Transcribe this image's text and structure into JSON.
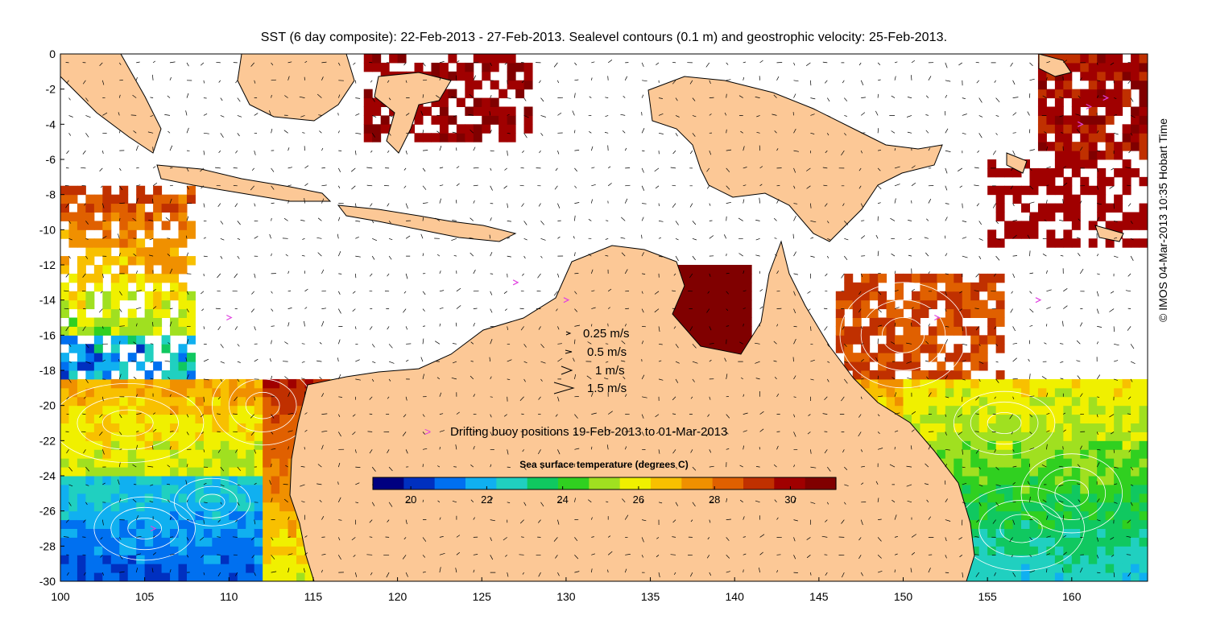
{
  "title": "SST (6 day composite): 22-Feb-2013 - 27-Feb-2013. Sealevel contours (0.1 m) and geostrophic velocity: 25-Feb-2013.",
  "credit": "© IMOS 04-Mar-2013 10:35 Hobart Time",
  "axes": {
    "x_ticks": [
      "100",
      "105",
      "110",
      "115",
      "120",
      "125",
      "130",
      "135",
      "140",
      "145",
      "150",
      "155",
      "160"
    ],
    "y_ticks": [
      "0",
      "-2",
      "-4",
      "-6",
      "-8",
      "-10",
      "-12",
      "-14",
      "-16",
      "-18",
      "-20",
      "-22",
      "-24",
      "-26",
      "-28",
      "-30"
    ],
    "lon_range": [
      100,
      164.5
    ],
    "lat_range": [
      -30,
      0
    ]
  },
  "velocity_legend": {
    "items": [
      {
        "label": "0.25 m/s",
        "speed": 0.25
      },
      {
        "label": "0.5 m/s",
        "speed": 0.5
      },
      {
        "label": "1 m/s",
        "speed": 1
      },
      {
        "label": "1.5 m/s",
        "speed": 1.5
      }
    ]
  },
  "buoy_legend": {
    "marker": ">",
    "label": "Drifting buoy positions 19-Feb-2013 to 01-Mar-2013",
    "color": "#e040e0"
  },
  "colorbar": {
    "title": "Sea surface temperature (degrees C)",
    "range": [
      19,
      31.2
    ],
    "ticks": [
      "20",
      "22",
      "24",
      "26",
      "28",
      "30"
    ],
    "colors": [
      "#000080",
      "#0030c0",
      "#0070f0",
      "#10b0f0",
      "#20d0c0",
      "#10c860",
      "#30d020",
      "#a0e020",
      "#f0f000",
      "#f8c000",
      "#f09000",
      "#e06000",
      "#c03000",
      "#a00000",
      "#800000"
    ]
  },
  "colors": {
    "land": "#fcc896",
    "coast": "#000000",
    "contour": "#ffffff",
    "vector": "#000000"
  }
}
